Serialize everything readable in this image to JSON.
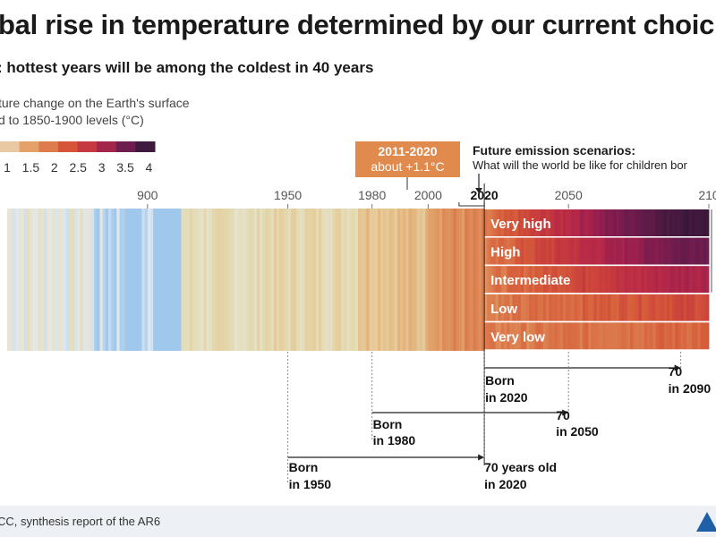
{
  "header": {
    "title": "bal rise in temperature determined by our current choic",
    "subtitle": ": hottest years will be among the coldest in 40 years"
  },
  "legend": {
    "title_line1": "ture change on the Earth's surface",
    "title_line2": "d to 1850-1900 levels (°C)",
    "ticks": [
      "1",
      "1.5",
      "2",
      "2.5",
      "3",
      "3.5",
      "4"
    ],
    "colors": [
      "#e9c8a4",
      "#e4a16a",
      "#df7c4f",
      "#d65538",
      "#c63a3f",
      "#a3264a",
      "#6e1d4f",
      "#3d1a3e"
    ]
  },
  "period_box": {
    "line1": "2011-2020",
    "line2": "about +1.1°C"
  },
  "future": {
    "title": "Future emission scenarios:",
    "subtitle": "What will the world be like for children bor"
  },
  "source": "CC, synthesis report of the AR6",
  "chart_data": {
    "type": "heatmap",
    "title": "bal rise in temperature determined by our current choic",
    "subtitle": ": hottest years will be among the coldest in 40 years",
    "x_ticks": [
      {
        "year": 1900,
        "label": "900"
      },
      {
        "year": 1950,
        "label": "1950"
      },
      {
        "year": 1980,
        "label": "1980"
      },
      {
        "year": 2000,
        "label": "2000"
      },
      {
        "year": 2020,
        "label": "2020"
      },
      {
        "year": 2050,
        "label": "2050"
      },
      {
        "year": 2100,
        "label": "210"
      }
    ],
    "x_range": [
      1850,
      2100
    ],
    "observed_period": [
      1850,
      2020
    ],
    "historical_anomaly_c": [
      {
        "from": 1850,
        "to": 1880,
        "value": 0.0
      },
      {
        "from": 1880,
        "to": 1910,
        "value": -0.2
      },
      {
        "from": 1910,
        "to": 1940,
        "value": 0.2
      },
      {
        "from": 1940,
        "to": 1975,
        "value": 0.3
      },
      {
        "from": 1975,
        "to": 2000,
        "value": 0.6
      },
      {
        "from": 2000,
        "to": 2020,
        "value": 1.0
      }
    ],
    "scenarios": [
      {
        "name": "Very high",
        "warming_2100_c": 4.4
      },
      {
        "name": "High",
        "warming_2100_c": 3.6
      },
      {
        "name": "Intermediate",
        "warming_2100_c": 2.7
      },
      {
        "name": "Low",
        "warming_2100_c": 1.8
      },
      {
        "name": "Very low",
        "warming_2100_c": 1.4
      }
    ],
    "generations": [
      {
        "born_label": "Born",
        "born_year_label": "in 2020",
        "start": 2020,
        "end": 2090,
        "end_label_1": "70",
        "end_label_2": "in 2090"
      },
      {
        "born_label": "Born",
        "born_year_label": "in 1980",
        "start": 1980,
        "end": 2050,
        "end_label_1": "70",
        "end_label_2": "in 2050"
      },
      {
        "born_label": "Born",
        "born_year_label": "in 1950",
        "start": 1950,
        "end": 2020,
        "end_label_1": "70 years old",
        "end_label_2": "in 2020"
      }
    ]
  }
}
